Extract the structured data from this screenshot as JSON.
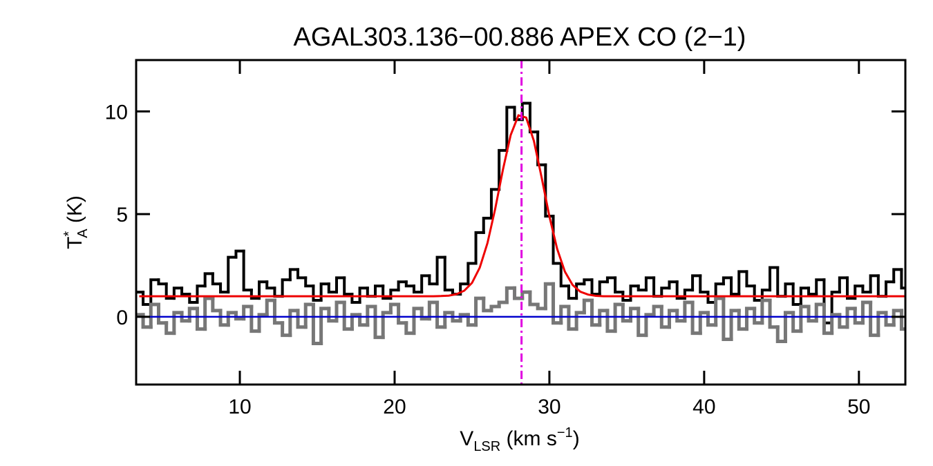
{
  "chart_data": {
    "type": "line",
    "title": "AGAL303.136−00.886  APEX CO (2−1)",
    "xlabel": {
      "text": "V",
      "sub": "LSR",
      "tail": " (km s",
      "sup": "−1",
      "end": ")"
    },
    "ylabel": {
      "text": "T",
      "sup": "*",
      "sub": "A",
      "tail": " (K)"
    },
    "xlim": [
      3.3,
      53.0
    ],
    "ylim": [
      -3.3,
      12.5
    ],
    "xticks": [
      10,
      20,
      30,
      40,
      50
    ],
    "yticks": [
      0,
      5,
      10
    ],
    "x": [
      3.5,
      4,
      4.5,
      5,
      5.5,
      6,
      6.5,
      7,
      7.5,
      8,
      8.5,
      9,
      9.5,
      10,
      10.5,
      11,
      11.5,
      12,
      12.5,
      13,
      13.5,
      14,
      14.5,
      15,
      15.5,
      16,
      16.5,
      17,
      17.5,
      18,
      18.5,
      19,
      19.5,
      20,
      20.5,
      21,
      21.5,
      22,
      22.5,
      23,
      23.5,
      24,
      24.5,
      25,
      25.5,
      26,
      26.5,
      27,
      27.5,
      28,
      28.5,
      29,
      29.5,
      30,
      30.5,
      31,
      31.5,
      32,
      32.5,
      33,
      33.5,
      34,
      34.5,
      35,
      35.5,
      36,
      36.5,
      37,
      37.5,
      38,
      38.5,
      39,
      39.5,
      40,
      40.5,
      41,
      41.5,
      42,
      42.5,
      43,
      43.5,
      44,
      44.5,
      45,
      45.5,
      46,
      46.5,
      47,
      47.5,
      48,
      48.5,
      49,
      49.5,
      50,
      50.5,
      51,
      51.5,
      52,
      52.5,
      53
    ],
    "series": [
      {
        "color": "#000000",
        "drawstyle": "steps-mid",
        "width": 4,
        "values": [
          1.2,
          0.6,
          1.8,
          1.6,
          0.9,
          1.4,
          1.1,
          0.7,
          1.5,
          2.1,
          1.6,
          1.2,
          2.9,
          3.2,
          1.3,
          0.9,
          1.7,
          1.4,
          1.0,
          1.8,
          2.3,
          1.9,
          1.5,
          0.8,
          1.6,
          1.2,
          1.9,
          1.1,
          0.7,
          1.4,
          1.0,
          1.5,
          0.9,
          1.3,
          1.7,
          1.5,
          1.2,
          2.0,
          1.6,
          2.9,
          1.3,
          1.1,
          1.6,
          2.6,
          4.1,
          4.8,
          6.2,
          8.1,
          10.2,
          9.6,
          10.4,
          9.0,
          7.4,
          4.9,
          2.6,
          1.5,
          0.9,
          1.6,
          1.8,
          1.1,
          1.7,
          1.9,
          1.2,
          0.8,
          1.5,
          1.3,
          1.9,
          1.0,
          1.4,
          1.7,
          0.9,
          1.3,
          2.0,
          1.2,
          0.7,
          1.6,
          1.9,
          1.1,
          2.2,
          1.5,
          0.8,
          1.3,
          2.4,
          1.0,
          1.6,
          0.6,
          1.4,
          1.1,
          1.8,
          -0.3,
          1.2,
          1.9,
          0.9,
          1.5,
          1.2,
          2.0,
          1.0,
          1.7,
          2.3,
          1.4
        ]
      },
      {
        "color": "#777777",
        "drawstyle": "steps-mid",
        "width": 5,
        "values": [
          0.1,
          -0.5,
          0.6,
          -0.3,
          -0.8,
          0.2,
          -0.2,
          0.4,
          -0.6,
          0.9,
          0.3,
          -0.4,
          0.2,
          -0.1,
          0.5,
          -0.7,
          0.1,
          0.8,
          -0.3,
          -0.9,
          0.3,
          -0.5,
          0.6,
          -1.3,
          0.4,
          -0.2,
          0.7,
          -0.6,
          0.1,
          -0.4,
          0.5,
          -1.0,
          0.2,
          0.6,
          -0.3,
          -0.8,
          0.4,
          -0.1,
          0.7,
          -0.5,
          0.2,
          -0.2,
          0.1,
          -0.4,
          0.9,
          0.3,
          0.5,
          0.7,
          1.4,
          0.9,
          1.2,
          0.6,
          0.4,
          1.6,
          -0.3,
          0.5,
          -0.6,
          0.2,
          0.8,
          -0.4,
          0.3,
          -0.7,
          0.6,
          -0.2,
          0.4,
          -0.9,
          0.1,
          0.5,
          -0.5,
          0.3,
          -0.2,
          0.7,
          -0.8,
          0.2,
          -0.4,
          0.9,
          -1.1,
          0.3,
          -0.6,
          0.4,
          -0.3,
          0.8,
          -0.5,
          -1.2,
          0.2,
          -0.7,
          0.5,
          -0.2,
          0.6,
          -0.8,
          0.1,
          -0.5,
          0.4,
          -0.3,
          0.7,
          -0.9,
          0.2,
          -0.4,
          0.3,
          -0.6
        ]
      },
      {
        "color": "#ee0000",
        "drawstyle": "line",
        "width": 3,
        "values": [
          1.0,
          1.0,
          1.0,
          1.0,
          1.0,
          1.0,
          1.0,
          1.0,
          1.0,
          1.0,
          1.0,
          1.0,
          1.0,
          1.0,
          1.0,
          1.0,
          1.0,
          1.0,
          1.0,
          1.0,
          1.0,
          1.0,
          1.0,
          1.0,
          1.0,
          1.0,
          1.0,
          1.0,
          1.0,
          1.0,
          1.0,
          1.0,
          1.0,
          1.0,
          1.0,
          1.0,
          1.0,
          1.0,
          1.0,
          1.01,
          1.03,
          1.1,
          1.27,
          1.65,
          2.39,
          3.59,
          5.26,
          7.17,
          8.85,
          9.81,
          9.7,
          8.56,
          6.78,
          4.89,
          3.31,
          2.2,
          1.55,
          1.22,
          1.08,
          1.02,
          1.0,
          1.0,
          1.0,
          1.0,
          1.0,
          1.0,
          1.0,
          1.0,
          1.0,
          1.0,
          1.0,
          1.0,
          1.0,
          1.0,
          1.0,
          1.0,
          1.0,
          1.0,
          1.0,
          1.0,
          1.0,
          1.0,
          1.0,
          1.0,
          1.0,
          1.0,
          1.0,
          1.0,
          1.0,
          1.0,
          1.0,
          1.0,
          1.0,
          1.0,
          1.0,
          1.0,
          1.0,
          1.0,
          1.0,
          1.0
        ]
      }
    ],
    "hline": {
      "y": 0,
      "color": "#0000cc"
    },
    "vline": {
      "x": 28.2,
      "color": "#e000e0"
    }
  }
}
